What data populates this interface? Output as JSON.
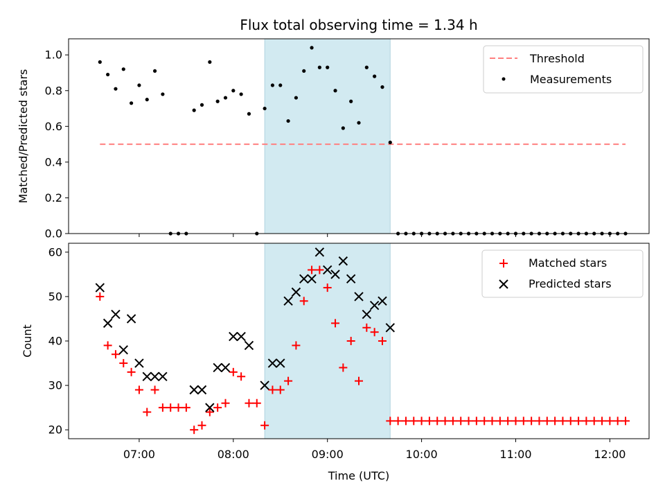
{
  "chart_data": [
    {
      "type": "scatter",
      "title": "Flux total observing time = 1.34 h",
      "xlabel": "",
      "ylabel": "Matched/Predicted stars",
      "ylim": [
        0,
        1.09
      ],
      "yticks": [
        "0.0",
        "0.2",
        "0.4",
        "0.6",
        "0.8",
        "1.0"
      ],
      "highlight_span": {
        "start": "08:20",
        "end": "09:40",
        "color": "#add8e6"
      },
      "threshold": {
        "name": "Threshold",
        "value": 0.5,
        "x_start": "06:35",
        "x_end": "12:10",
        "color": "#ff7f7f",
        "style": "dashed"
      },
      "series": [
        {
          "name": "Measurements",
          "color": "#000000",
          "marker": "dot",
          "x": [
            "06:35",
            "06:40",
            "06:45",
            "06:50",
            "06:55",
            "07:00",
            "07:05",
            "07:10",
            "07:15",
            "07:20",
            "07:25",
            "07:30",
            "07:35",
            "07:40",
            "07:45",
            "07:50",
            "07:55",
            "08:00",
            "08:05",
            "08:10",
            "08:15",
            "08:20",
            "08:25",
            "08:30",
            "08:35",
            "08:40",
            "08:45",
            "08:50",
            "08:55",
            "09:00",
            "09:05",
            "09:10",
            "09:15",
            "09:20",
            "09:25",
            "09:30",
            "09:35",
            "09:40",
            "09:45",
            "09:50",
            "09:55",
            "10:00",
            "10:05",
            "10:10",
            "10:15",
            "10:20",
            "10:25",
            "10:30",
            "10:35",
            "10:40",
            "10:45",
            "10:50",
            "10:55",
            "11:00",
            "11:05",
            "11:10",
            "11:15",
            "11:20",
            "11:25",
            "11:30",
            "11:35",
            "11:40",
            "11:45",
            "11:50",
            "11:55",
            "12:00",
            "12:05",
            "12:10"
          ],
          "y": [
            0.96,
            0.89,
            0.81,
            0.92,
            0.73,
            0.83,
            0.75,
            0.91,
            0.78,
            0,
            0,
            0,
            0.69,
            0.72,
            0.96,
            0.74,
            0.76,
            0.8,
            0.78,
            0.67,
            0,
            0.7,
            0.83,
            0.83,
            0.63,
            0.76,
            0.91,
            1.04,
            0.93,
            0.93,
            0.8,
            0.59,
            0.74,
            0.62,
            0.93,
            0.88,
            0.82,
            0.51,
            0,
            0,
            0,
            0,
            0,
            0,
            0,
            0,
            0,
            0,
            0,
            0,
            0,
            0,
            0,
            0,
            0,
            0,
            0,
            0,
            0,
            0,
            0,
            0,
            0,
            0,
            0,
            0,
            0,
            0
          ]
        }
      ],
      "legend": {
        "placement": "top-right",
        "entries": [
          "Threshold",
          "Measurements"
        ]
      },
      "grid": false
    },
    {
      "type": "scatter",
      "title": "",
      "xlabel": "Time (UTC)",
      "ylabel": "Count",
      "ylim": [
        18,
        62
      ],
      "yticks": [
        "20",
        "30",
        "40",
        "50",
        "60"
      ],
      "xticks": [
        "07:00",
        "08:00",
        "09:00",
        "10:00",
        "11:00",
        "12:00"
      ],
      "xlim": [
        "06:15",
        "12:25"
      ],
      "highlight_span": {
        "start": "08:20",
        "end": "09:40",
        "color": "#add8e6"
      },
      "series": [
        {
          "name": "Matched stars",
          "color": "#ff0000",
          "marker": "plus",
          "x": [
            "06:35",
            "06:40",
            "06:45",
            "06:50",
            "06:55",
            "07:00",
            "07:05",
            "07:10",
            "07:15",
            "07:20",
            "07:25",
            "07:30",
            "07:35",
            "07:40",
            "07:45",
            "07:50",
            "07:55",
            "08:00",
            "08:05",
            "08:10",
            "08:15",
            "08:20",
            "08:25",
            "08:30",
            "08:35",
            "08:40",
            "08:45",
            "08:50",
            "08:55",
            "09:00",
            "09:05",
            "09:10",
            "09:15",
            "09:20",
            "09:25",
            "09:30",
            "09:35",
            "09:40",
            "09:45",
            "09:50",
            "09:55",
            "10:00",
            "10:05",
            "10:10",
            "10:15",
            "10:20",
            "10:25",
            "10:30",
            "10:35",
            "10:40",
            "10:45",
            "10:50",
            "10:55",
            "11:00",
            "11:05",
            "11:10",
            "11:15",
            "11:20",
            "11:25",
            "11:30",
            "11:35",
            "11:40",
            "11:45",
            "11:50",
            "11:55",
            "12:00",
            "12:05",
            "12:10"
          ],
          "y": [
            50,
            39,
            37,
            35,
            33,
            29,
            24,
            29,
            25,
            25,
            25,
            25,
            20,
            21,
            24,
            25,
            26,
            33,
            32,
            26,
            26,
            21,
            29,
            29,
            31,
            39,
            49,
            56,
            56,
            52,
            44,
            34,
            40,
            31,
            43,
            42,
            40,
            22,
            22,
            22,
            22,
            22,
            22,
            22,
            22,
            22,
            22,
            22,
            22,
            22,
            22,
            22,
            22,
            22,
            22,
            22,
            22,
            22,
            22,
            22,
            22,
            22,
            22,
            22,
            22,
            22,
            22,
            22
          ]
        },
        {
          "name": "Predicted stars",
          "color": "#000000",
          "marker": "x",
          "x": [
            "06:35",
            "06:40",
            "06:45",
            "06:50",
            "06:55",
            "07:00",
            "07:05",
            "07:10",
            "07:15",
            "07:35",
            "07:40",
            "07:45",
            "07:50",
            "07:55",
            "08:00",
            "08:05",
            "08:10",
            "08:20",
            "08:25",
            "08:30",
            "08:35",
            "08:40",
            "08:45",
            "08:50",
            "08:55",
            "09:00",
            "09:05",
            "09:10",
            "09:15",
            "09:20",
            "09:25",
            "09:30",
            "09:35",
            "09:40"
          ],
          "y": [
            52,
            44,
            46,
            38,
            45,
            35,
            32,
            32,
            32,
            29,
            29,
            25,
            34,
            34,
            41,
            41,
            39,
            30,
            35,
            35,
            49,
            51,
            54,
            54,
            60,
            56,
            55,
            58,
            54,
            50,
            46,
            48,
            49,
            43
          ]
        }
      ],
      "legend": {
        "placement": "top-right",
        "entries": [
          "Matched stars",
          "Predicted stars"
        ]
      },
      "grid": false
    }
  ]
}
